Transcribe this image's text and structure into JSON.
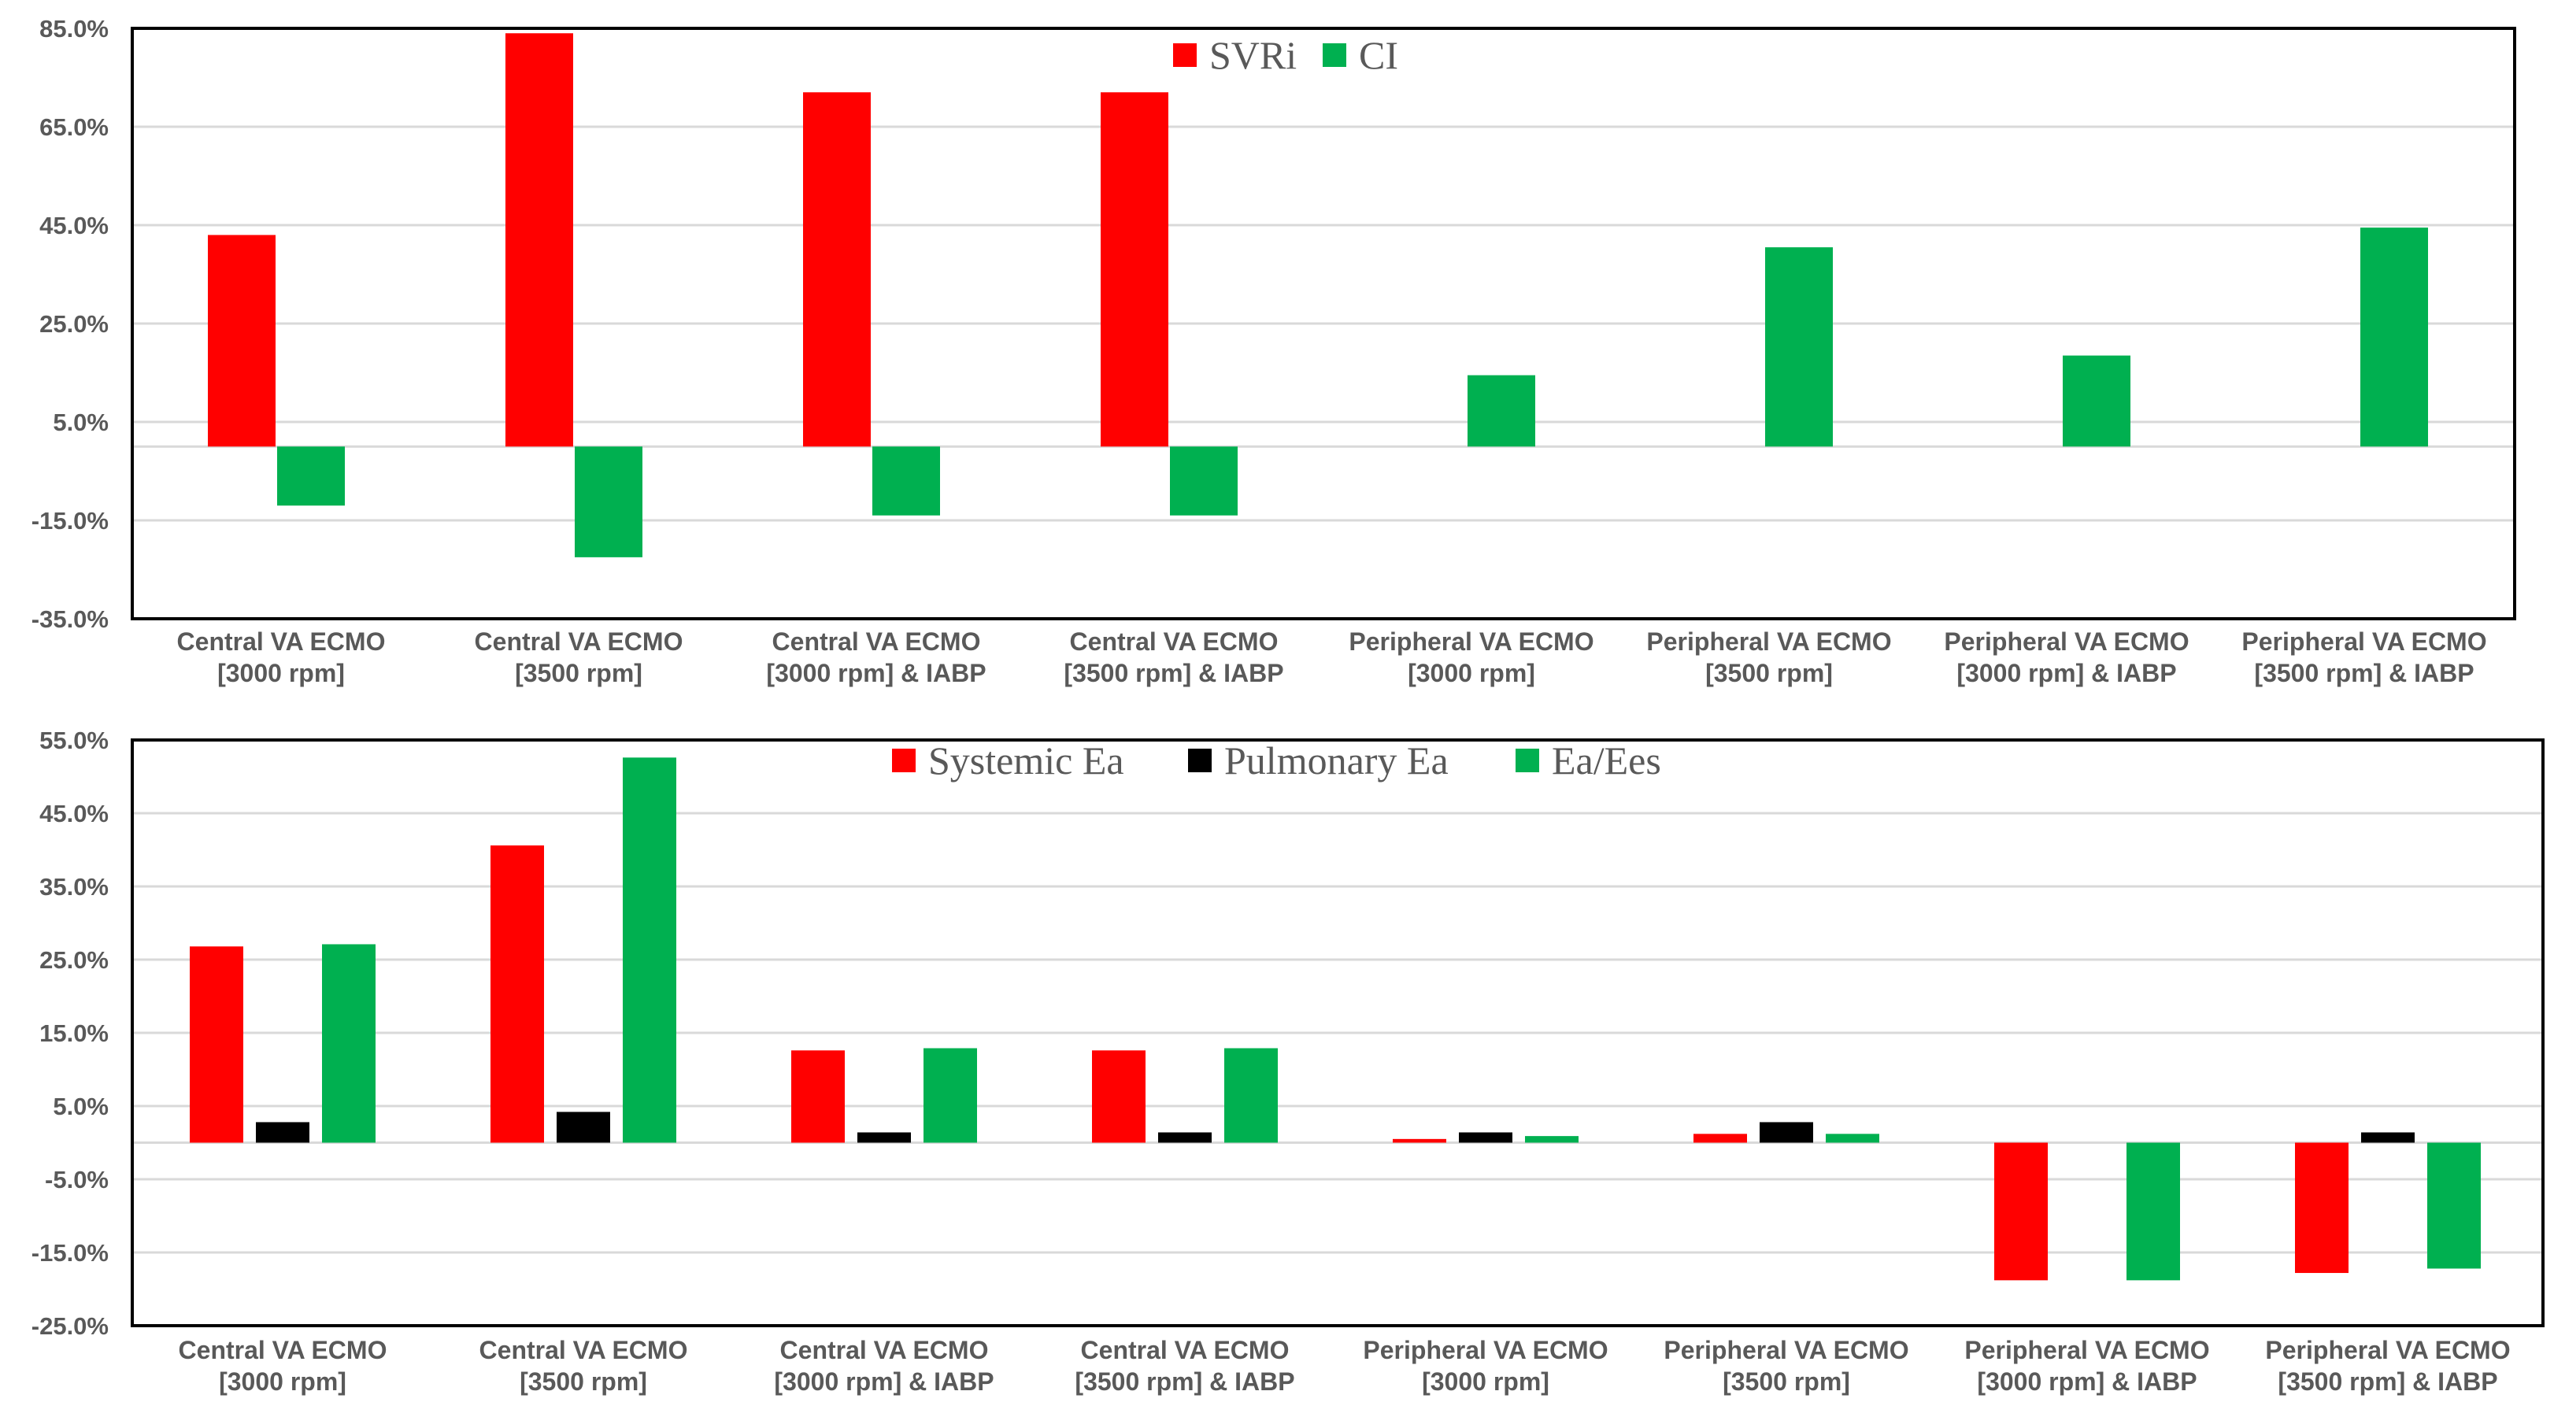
{
  "chart_data": [
    {
      "type": "bar",
      "title": "",
      "xlabel": "",
      "ylabel": "",
      "ylim": [
        -35,
        85
      ],
      "ytick_step": 20,
      "legend_position": "top-center",
      "categories": [
        [
          "Central VA ECMO",
          "[3000 rpm]"
        ],
        [
          "Central VA ECMO",
          "[3500 rpm]"
        ],
        [
          "Central VA ECMO",
          "[3000 rpm] & IABP"
        ],
        [
          "Central VA ECMO",
          "[3500 rpm] & IABP"
        ],
        [
          "Peripheral VA ECMO",
          "[3000 rpm]"
        ],
        [
          "Peripheral VA ECMO",
          "[3500 rpm]"
        ],
        [
          "Peripheral VA  ECMO",
          "[3000 rpm] & IABP"
        ],
        [
          "Peripheral VA ECMO",
          "[3500 rpm] & IABP"
        ]
      ],
      "series": [
        {
          "name": "SVRi",
          "color": "#ff0000",
          "values": [
            43,
            84,
            72,
            72,
            0,
            0,
            0,
            0
          ]
        },
        {
          "name": "CI",
          "color": "#00b050",
          "values": [
            -12,
            -22.5,
            -14,
            -14,
            14.5,
            40.5,
            18.5,
            44.5
          ]
        }
      ]
    },
    {
      "type": "bar",
      "title": "",
      "xlabel": "",
      "ylabel": "",
      "ylim": [
        -25,
        55
      ],
      "ytick_step": 10,
      "legend_position": "top-center",
      "categories": [
        [
          "Central VA ECMO",
          "[3000 rpm]"
        ],
        [
          "Central VA ECMO",
          "[3500 rpm]"
        ],
        [
          "Central VA ECMO",
          "[3000 rpm] & IABP"
        ],
        [
          "Central VA ECMO",
          "[3500 rpm] & IABP"
        ],
        [
          "Peripheral VA ECMO",
          "[3000 rpm]"
        ],
        [
          "Peripheral VA ECMO",
          "[3500 rpm]"
        ],
        [
          "Peripheral VA  ECMO",
          "[3000 rpm] & IABP"
        ],
        [
          "Peripheral VA ECMO",
          "[3500 rpm] & IABP"
        ]
      ],
      "series": [
        {
          "name": "Systemic Ea",
          "color": "#ff0000",
          "values": [
            26.8,
            40.6,
            12.6,
            12.6,
            0.5,
            1.2,
            -18.8,
            -17.8
          ]
        },
        {
          "name": "Pulmonary Ea",
          "color": "#000000",
          "values": [
            2.8,
            4.2,
            1.4,
            1.4,
            1.4,
            2.8,
            0,
            1.4
          ]
        },
        {
          "name": "Ea/Ees",
          "color": "#00b050",
          "values": [
            27.1,
            52.6,
            12.9,
            12.9,
            0.9,
            1.2,
            -18.8,
            -17.2
          ]
        }
      ]
    }
  ]
}
